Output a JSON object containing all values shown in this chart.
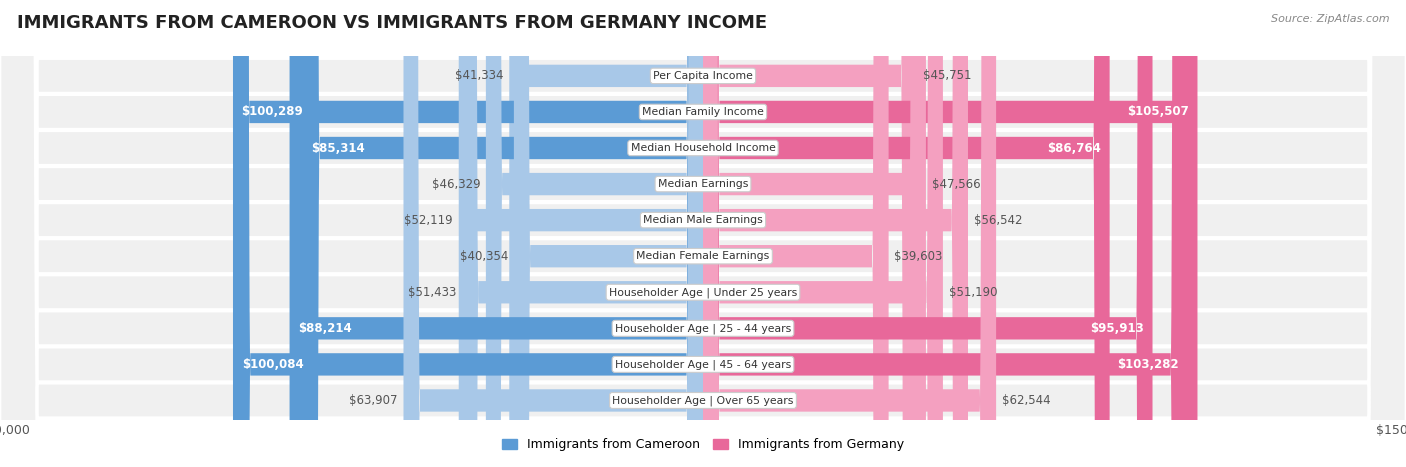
{
  "title": "IMMIGRANTS FROM CAMEROON VS IMMIGRANTS FROM GERMANY INCOME",
  "source": "Source: ZipAtlas.com",
  "categories": [
    "Per Capita Income",
    "Median Family Income",
    "Median Household Income",
    "Median Earnings",
    "Median Male Earnings",
    "Median Female Earnings",
    "Householder Age | Under 25 years",
    "Householder Age | 25 - 44 years",
    "Householder Age | 45 - 64 years",
    "Householder Age | Over 65 years"
  ],
  "cameroon_values": [
    41334,
    100289,
    85314,
    46329,
    52119,
    40354,
    51433,
    88214,
    100084,
    63907
  ],
  "germany_values": [
    45751,
    105507,
    86764,
    47566,
    56542,
    39603,
    51190,
    95913,
    103282,
    62544
  ],
  "cameroon_labels": [
    "$41,334",
    "$100,289",
    "$85,314",
    "$46,329",
    "$52,119",
    "$40,354",
    "$51,433",
    "$88,214",
    "$100,084",
    "$63,907"
  ],
  "germany_labels": [
    "$45,751",
    "$105,507",
    "$86,764",
    "$47,566",
    "$56,542",
    "$39,603",
    "$51,190",
    "$95,913",
    "$103,282",
    "$62,544"
  ],
  "cameroon_color_light": "#a8c8e8",
  "cameroon_color_dark": "#5b9bd5",
  "germany_color_light": "#f4a0c0",
  "germany_color_dark": "#e8689a",
  "cam_dark_threshold": 80000,
  "ger_dark_threshold": 80000,
  "max_value": 150000,
  "bar_height": 0.62,
  "background_color": "#ffffff",
  "row_bg_color": "#efefef",
  "row_bg_color_alt": "#f7f7f7",
  "label_fontsize": 8.5,
  "title_fontsize": 13,
  "source_fontsize": 8,
  "legend_fontsize": 9,
  "xlabel_fontsize": 9,
  "cat_fontsize": 7.8
}
